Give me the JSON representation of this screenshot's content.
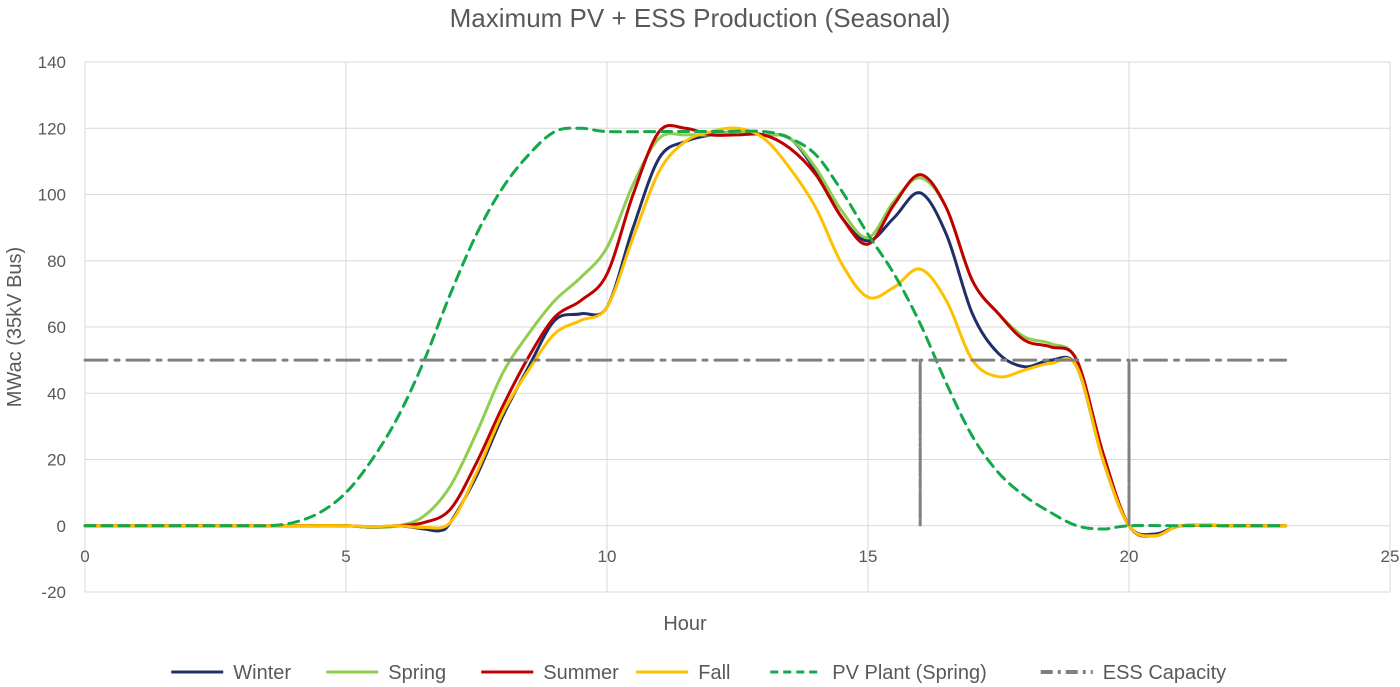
{
  "chart_data": {
    "type": "line",
    "title": "Maximum PV + ESS Production (Seasonal)",
    "xlabel": "Hour",
    "ylabel": "MWac (35kV Bus)",
    "xlim": [
      0,
      25
    ],
    "ylim": [
      -20,
      140
    ],
    "xticks": [
      0,
      5,
      10,
      15,
      20,
      25
    ],
    "yticks": [
      -20,
      0,
      20,
      40,
      60,
      80,
      100,
      120,
      140
    ],
    "grid": true,
    "legend_position": "bottom",
    "series": [
      {
        "name": "Winter",
        "color": "#1f3068",
        "dash": "solid",
        "points": [
          [
            0,
            0
          ],
          [
            1,
            0
          ],
          [
            2,
            0
          ],
          [
            3,
            0
          ],
          [
            4,
            0
          ],
          [
            5,
            0
          ],
          [
            5.5,
            -0.5
          ],
          [
            6,
            0
          ],
          [
            6.5,
            -1
          ],
          [
            6.8,
            -1.5
          ],
          [
            7,
            1
          ],
          [
            7.5,
            15
          ],
          [
            8,
            33
          ],
          [
            8.5,
            48
          ],
          [
            9,
            62
          ],
          [
            9.5,
            64
          ],
          [
            10,
            66
          ],
          [
            10.5,
            90
          ],
          [
            11,
            111
          ],
          [
            11.5,
            116
          ],
          [
            12,
            118
          ],
          [
            12.5,
            119
          ],
          [
            13,
            118
          ],
          [
            13.5,
            117
          ],
          [
            14,
            107
          ],
          [
            14.5,
            93
          ],
          [
            15,
            86
          ],
          [
            15.5,
            93
          ],
          [
            16,
            100.5
          ],
          [
            16.5,
            88
          ],
          [
            17,
            64
          ],
          [
            17.5,
            52
          ],
          [
            18,
            48
          ],
          [
            18.5,
            50
          ],
          [
            19,
            48
          ],
          [
            19.5,
            20
          ],
          [
            20,
            0
          ],
          [
            20.5,
            -2.5
          ],
          [
            21,
            0
          ],
          [
            22,
            0
          ],
          [
            23,
            0
          ]
        ]
      },
      {
        "name": "Spring",
        "color": "#8fce4f",
        "dash": "solid",
        "points": [
          [
            0,
            0
          ],
          [
            1,
            0
          ],
          [
            2,
            0
          ],
          [
            3,
            0
          ],
          [
            4,
            0
          ],
          [
            5,
            0
          ],
          [
            5.5,
            -0.5
          ],
          [
            6,
            0
          ],
          [
            6.5,
            3
          ],
          [
            7,
            12
          ],
          [
            7.5,
            28
          ],
          [
            8,
            46
          ],
          [
            8.5,
            58
          ],
          [
            9,
            68
          ],
          [
            9.5,
            75
          ],
          [
            10,
            84
          ],
          [
            10.5,
            103
          ],
          [
            11,
            117
          ],
          [
            11.5,
            118
          ],
          [
            12,
            118
          ],
          [
            12.5,
            119
          ],
          [
            13,
            118
          ],
          [
            13.5,
            117
          ],
          [
            14,
            108
          ],
          [
            14.5,
            95
          ],
          [
            15,
            87
          ],
          [
            15.5,
            98
          ],
          [
            16,
            105
          ],
          [
            16.5,
            96
          ],
          [
            17,
            74
          ],
          [
            17.5,
            64
          ],
          [
            18,
            57
          ],
          [
            18.5,
            55
          ],
          [
            19,
            50
          ],
          [
            19.5,
            22
          ],
          [
            20,
            0
          ],
          [
            20.5,
            -3
          ],
          [
            21,
            0
          ],
          [
            22,
            0
          ],
          [
            23,
            0
          ]
        ]
      },
      {
        "name": "Summer",
        "color": "#c00000",
        "dash": "solid",
        "points": [
          [
            0,
            0
          ],
          [
            1,
            0
          ],
          [
            2,
            0
          ],
          [
            3,
            0
          ],
          [
            4,
            0
          ],
          [
            5,
            0
          ],
          [
            5.5,
            -0.3
          ],
          [
            6,
            0
          ],
          [
            6.5,
            1
          ],
          [
            7,
            5
          ],
          [
            7.5,
            19
          ],
          [
            8,
            36
          ],
          [
            8.5,
            51
          ],
          [
            9,
            63
          ],
          [
            9.5,
            68
          ],
          [
            10,
            76
          ],
          [
            10.5,
            100
          ],
          [
            11,
            119
          ],
          [
            11.5,
            120
          ],
          [
            12,
            118
          ],
          [
            12.5,
            118
          ],
          [
            13,
            118
          ],
          [
            13.5,
            114
          ],
          [
            14,
            106
          ],
          [
            14.5,
            93
          ],
          [
            15,
            85
          ],
          [
            15.5,
            97
          ],
          [
            16,
            106
          ],
          [
            16.5,
            96
          ],
          [
            17,
            74
          ],
          [
            17.5,
            64
          ],
          [
            18,
            56
          ],
          [
            18.5,
            54
          ],
          [
            19,
            50
          ],
          [
            19.5,
            22
          ],
          [
            20,
            0
          ],
          [
            20.5,
            -3
          ],
          [
            21,
            0
          ],
          [
            22,
            0
          ],
          [
            23,
            0
          ]
        ]
      },
      {
        "name": "Fall",
        "color": "#ffc000",
        "dash": "solid",
        "points": [
          [
            0,
            0
          ],
          [
            1,
            0
          ],
          [
            2,
            0
          ],
          [
            3,
            0
          ],
          [
            4,
            0
          ],
          [
            5,
            0
          ],
          [
            5.5,
            -0.3
          ],
          [
            6,
            0
          ],
          [
            6.5,
            -0.5
          ],
          [
            7,
            1
          ],
          [
            7.5,
            16
          ],
          [
            8,
            34
          ],
          [
            8.5,
            47
          ],
          [
            9,
            58
          ],
          [
            9.5,
            62
          ],
          [
            10,
            66
          ],
          [
            10.5,
            87
          ],
          [
            11,
            107
          ],
          [
            11.5,
            116
          ],
          [
            12,
            119
          ],
          [
            12.5,
            120
          ],
          [
            13,
            117
          ],
          [
            13.5,
            108
          ],
          [
            14,
            96
          ],
          [
            14.5,
            79
          ],
          [
            15,
            69
          ],
          [
            15.5,
            72
          ],
          [
            16,
            77.5
          ],
          [
            16.5,
            68
          ],
          [
            17,
            50
          ],
          [
            17.5,
            45
          ],
          [
            18,
            47
          ],
          [
            18.5,
            49
          ],
          [
            19,
            48
          ],
          [
            19.5,
            20
          ],
          [
            20,
            0
          ],
          [
            20.5,
            -3
          ],
          [
            21,
            0
          ],
          [
            22,
            0
          ],
          [
            23,
            0
          ]
        ]
      },
      {
        "name": "PV Plant (Spring)",
        "color": "#13a84b",
        "dash": "dashed",
        "points": [
          [
            0,
            0
          ],
          [
            1,
            0
          ],
          [
            2,
            0
          ],
          [
            3,
            0
          ],
          [
            3.5,
            0
          ],
          [
            4,
            1
          ],
          [
            4.5,
            4
          ],
          [
            5,
            10
          ],
          [
            5.5,
            20
          ],
          [
            6,
            33
          ],
          [
            6.5,
            50
          ],
          [
            7,
            70
          ],
          [
            7.5,
            88
          ],
          [
            8,
            102
          ],
          [
            8.5,
            112
          ],
          [
            9,
            119
          ],
          [
            9.5,
            120
          ],
          [
            10,
            119
          ],
          [
            11,
            119
          ],
          [
            12,
            119
          ],
          [
            13,
            119
          ],
          [
            13.5,
            117
          ],
          [
            14,
            112
          ],
          [
            14.5,
            101
          ],
          [
            15,
            88
          ],
          [
            15.5,
            76
          ],
          [
            16,
            61
          ],
          [
            16.5,
            43
          ],
          [
            17,
            27
          ],
          [
            17.5,
            16
          ],
          [
            18,
            9
          ],
          [
            18.5,
            4
          ],
          [
            19,
            0
          ],
          [
            19.5,
            -1
          ],
          [
            20,
            0
          ],
          [
            21,
            0
          ],
          [
            22,
            0
          ],
          [
            23,
            0
          ]
        ]
      },
      {
        "name": "ESS Capacity",
        "color": "#808080",
        "dash": "dash-dot",
        "points": [
          [
            0,
            50
          ],
          [
            16,
            50
          ],
          [
            16,
            0
          ],
          [
            16,
            50
          ],
          [
            20,
            50
          ],
          [
            20,
            0
          ],
          [
            20,
            50
          ],
          [
            23,
            50
          ]
        ]
      }
    ]
  }
}
